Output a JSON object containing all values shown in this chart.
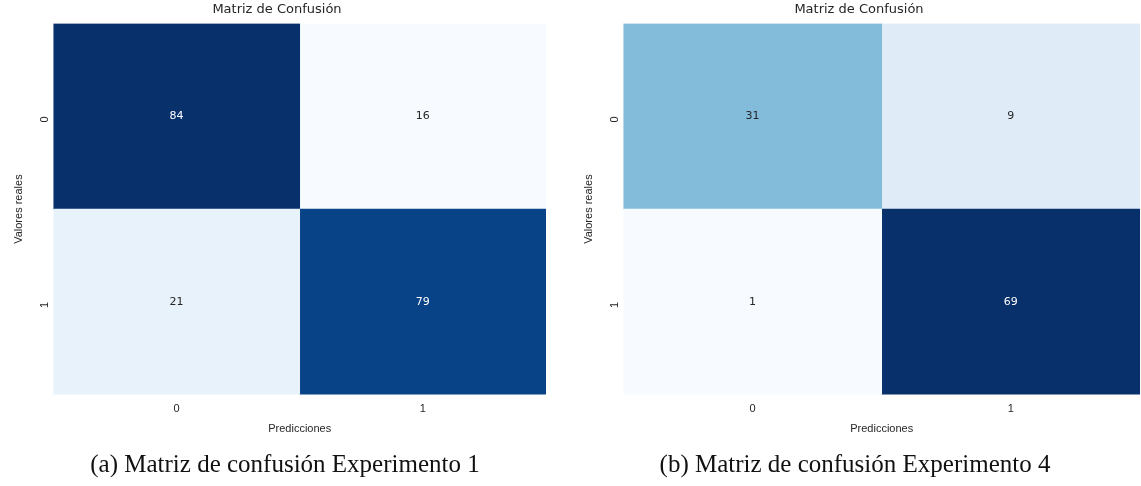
{
  "chart_data": [
    {
      "type": "heatmap",
      "title": "Matriz de Confusión",
      "xlabel": "Predicciones",
      "ylabel": "Valores reales",
      "categories": [
        "0",
        "1"
      ],
      "y_categories": [
        "0",
        "1"
      ],
      "cells": [
        [
          84,
          16
        ],
        [
          21,
          79
        ]
      ],
      "data_labels": true,
      "annotations": [
        "(a) Matriz de confusión Experimento 1"
      ]
    },
    {
      "type": "heatmap",
      "title": "Matriz de Confusión",
      "xlabel": "Predicciones",
      "ylabel": "Valores reales",
      "categories": [
        "0",
        "1"
      ],
      "y_categories": [
        "0",
        "1"
      ],
      "cells": [
        [
          31,
          9
        ],
        [
          1,
          69
        ]
      ],
      "data_labels": true,
      "annotations": [
        "(b) Matriz de confusión Experimento 4"
      ]
    }
  ]
}
